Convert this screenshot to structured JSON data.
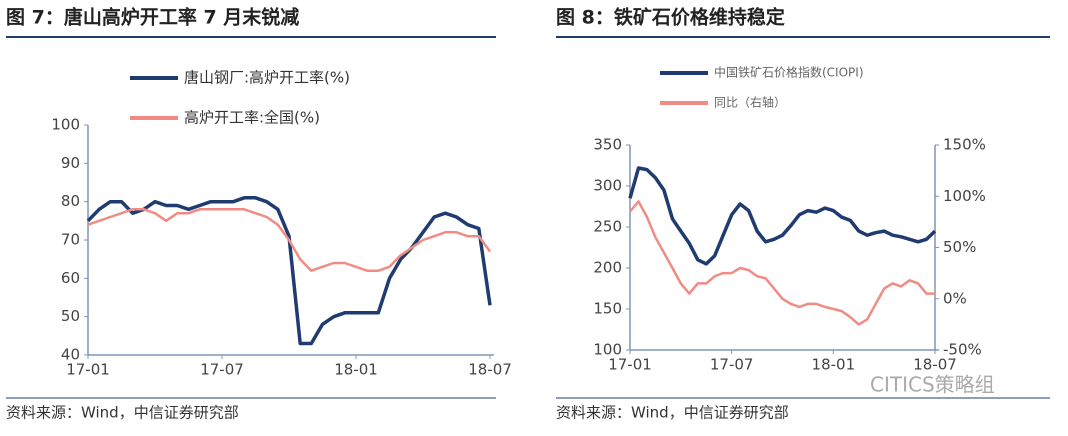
{
  "chart_data": [
    {
      "type": "line",
      "title": "图 7：唐山高炉开工率 7 月末锐减",
      "categories": [
        "17-01",
        null,
        null,
        null,
        null,
        null,
        null,
        null,
        null,
        null,
        null,
        null,
        "17-07",
        null,
        null,
        null,
        null,
        null,
        null,
        null,
        null,
        null,
        null,
        null,
        "18-01",
        null,
        null,
        null,
        null,
        null,
        null,
        null,
        null,
        null,
        null,
        null,
        "18-07"
      ],
      "series": [
        {
          "name": "唐山钢厂:高炉开工率(%)",
          "color": "#1f3b70",
          "values": [
            75,
            78,
            80,
            80,
            77,
            78,
            80,
            79,
            79,
            78,
            79,
            80,
            80,
            80,
            81,
            81,
            80,
            78,
            71,
            43,
            43,
            48,
            50,
            51,
            51,
            51,
            51,
            60,
            65,
            68,
            72,
            76,
            77,
            76,
            74,
            73,
            53
          ]
        },
        {
          "name": "高炉开工率:全国(%)",
          "color": "#f08c84",
          "values": [
            74,
            75,
            76,
            77,
            78,
            78,
            77,
            75,
            77,
            77,
            78,
            78,
            78,
            78,
            78,
            77,
            76,
            74,
            70,
            65,
            62,
            63,
            64,
            64,
            63,
            62,
            62,
            63,
            66,
            68,
            70,
            71,
            72,
            72,
            71,
            71,
            67
          ]
        }
      ],
      "ylim": [
        40,
        100
      ],
      "yticks": [
        40,
        50,
        60,
        70,
        80,
        90,
        100
      ],
      "source": "资料来源：Wind，中信证券研究部"
    },
    {
      "type": "line",
      "title": "图 8：铁矿石价格维持稳定",
      "categories": [
        "17-01",
        null,
        null,
        null,
        null,
        null,
        null,
        null,
        null,
        null,
        null,
        null,
        "17-07",
        null,
        null,
        null,
        null,
        null,
        null,
        null,
        null,
        null,
        null,
        null,
        "18-01",
        null,
        null,
        null,
        null,
        null,
        null,
        null,
        null,
        null,
        null,
        null,
        "18-07"
      ],
      "series": [
        {
          "name": "中国铁矿石价格指数(CIOPI)",
          "color": "#1f3b70",
          "values": [
            285,
            322,
            320,
            310,
            295,
            260,
            245,
            230,
            210,
            205,
            215,
            240,
            265,
            278,
            270,
            245,
            232,
            235,
            240,
            252,
            265,
            270,
            268,
            273,
            270,
            262,
            258,
            245,
            240,
            243,
            245,
            240,
            238,
            235,
            232,
            235,
            245
          ]
        },
        {
          "name": "同比（右轴）",
          "color": "#f08c84",
          "axis": "y2",
          "values": [
            85,
            95,
            80,
            60,
            45,
            30,
            15,
            5,
            15,
            15,
            22,
            25,
            25,
            30,
            28,
            22,
            20,
            10,
            0,
            -5,
            -8,
            -5,
            -5,
            -8,
            -10,
            -12,
            -18,
            -25,
            -20,
            -5,
            10,
            15,
            12,
            18,
            15,
            5,
            5
          ]
        }
      ],
      "ylim": [
        100,
        350
      ],
      "yticks": [
        100,
        150,
        200,
        250,
        300,
        350
      ],
      "y2lim": [
        -50,
        150
      ],
      "y2ticks": [
        {
          "value": -50,
          "label": "-50%"
        },
        {
          "value": 0,
          "label": "0%"
        },
        {
          "value": 50,
          "label": "50%"
        },
        {
          "value": 100,
          "label": "100%"
        },
        {
          "value": 150,
          "label": "150%"
        }
      ],
      "source": "资料来源：Wind，中信证券研究部",
      "watermark": "CITICS策略组"
    }
  ]
}
